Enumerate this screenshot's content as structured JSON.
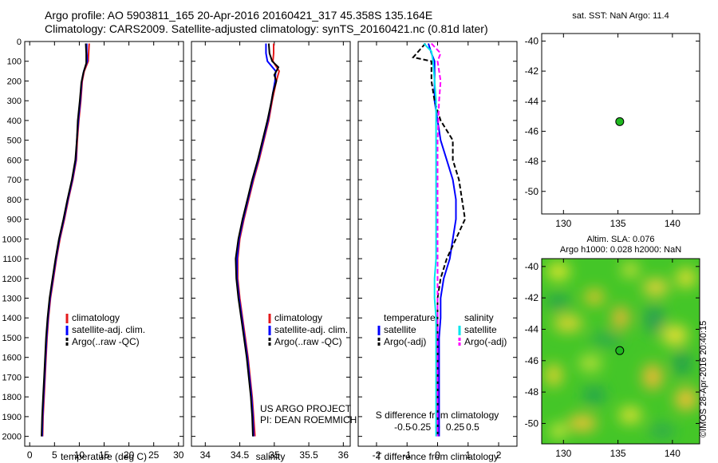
{
  "header": {
    "title_line1": "Argo profile: AO 5903811_165 20-Apr-2016 20160421_317 45.358S 135.164E",
    "title_line2": "Climatology: CARS2009. Satellite-adjusted climatology: synTS_20160421.nc (0.81d later)"
  },
  "credit": {
    "line1": "US ARGO PROJECT",
    "line2": "PI: DEAN ROEMMICH"
  },
  "stamp": "©IMOS 28-Apr-2016 20:40:15",
  "colors": {
    "climatology": "#e41a1c",
    "satellite": "#0000ff",
    "argo": "#000000",
    "salinity_sat": "#00e5ee",
    "salinity_argo": "#ff00ff",
    "marker": "#1fb81f"
  },
  "chart_data": [
    {
      "id": "temperature",
      "type": "line",
      "xlabel": "temperature (deg C)",
      "xlim": [
        -1,
        31
      ],
      "xticks": [
        0,
        5,
        10,
        15,
        20,
        25,
        30
      ],
      "ylim": [
        0,
        2050
      ],
      "yticks": [
        0,
        100,
        200,
        300,
        400,
        500,
        600,
        700,
        800,
        900,
        1000,
        1100,
        1200,
        1300,
        1400,
        1500,
        1600,
        1700,
        1800,
        1900,
        2000
      ],
      "legend": [
        "climatology",
        "satellite-adj. clim.",
        "Argo(..raw -QC)"
      ],
      "series": [
        {
          "name": "climatology",
          "color": "#e41a1c",
          "style": "solid",
          "points": [
            [
              12.0,
              10
            ],
            [
              11.9,
              50
            ],
            [
              11.8,
              100
            ],
            [
              11.0,
              150
            ],
            [
              10.6,
              200
            ],
            [
              10.3,
              300
            ],
            [
              9.9,
              400
            ],
            [
              9.6,
              500
            ],
            [
              9.4,
              600
            ],
            [
              8.7,
              700
            ],
            [
              7.8,
              800
            ],
            [
              7.0,
              900
            ],
            [
              6.1,
              1000
            ],
            [
              5.4,
              1100
            ],
            [
              4.8,
              1200
            ],
            [
              4.2,
              1300
            ],
            [
              3.8,
              1400
            ],
            [
              3.5,
              1500
            ],
            [
              3.3,
              1600
            ],
            [
              3.1,
              1700
            ],
            [
              2.9,
              1800
            ],
            [
              2.7,
              1900
            ],
            [
              2.6,
              2000
            ]
          ]
        },
        {
          "name": "satellite-adj. clim.",
          "color": "#0000ff",
          "style": "solid",
          "points": [
            [
              11.5,
              10
            ],
            [
              11.5,
              50
            ],
            [
              11.6,
              100
            ],
            [
              10.9,
              150
            ],
            [
              10.5,
              200
            ],
            [
              10.2,
              300
            ],
            [
              9.8,
              400
            ],
            [
              9.5,
              500
            ],
            [
              9.3,
              600
            ],
            [
              8.6,
              700
            ],
            [
              7.7,
              800
            ],
            [
              6.9,
              900
            ],
            [
              6.0,
              1000
            ],
            [
              5.3,
              1100
            ],
            [
              4.7,
              1200
            ],
            [
              4.1,
              1300
            ],
            [
              3.7,
              1400
            ],
            [
              3.4,
              1500
            ],
            [
              3.2,
              1600
            ],
            [
              3.0,
              1700
            ],
            [
              2.8,
              1800
            ],
            [
              2.6,
              1900
            ],
            [
              2.5,
              2000
            ]
          ]
        },
        {
          "name": "Argo(..raw -QC)",
          "color": "#000000",
          "style": "solid",
          "points": [
            [
              11.3,
              10
            ],
            [
              11.4,
              60
            ],
            [
              11.4,
              110
            ],
            [
              10.8,
              160
            ],
            [
              10.4,
              210
            ],
            [
              10.1,
              300
            ],
            [
              9.7,
              400
            ],
            [
              9.5,
              500
            ],
            [
              9.2,
              600
            ],
            [
              8.5,
              700
            ],
            [
              7.6,
              800
            ],
            [
              6.8,
              900
            ],
            [
              5.9,
              1000
            ],
            [
              5.2,
              1100
            ],
            [
              4.6,
              1200
            ],
            [
              4.0,
              1300
            ],
            [
              3.6,
              1400
            ],
            [
              3.3,
              1500
            ],
            [
              3.1,
              1600
            ],
            [
              2.9,
              1700
            ],
            [
              2.7,
              1800
            ],
            [
              2.5,
              1900
            ],
            [
              2.4,
              2000
            ]
          ]
        }
      ]
    },
    {
      "id": "salinity",
      "type": "line",
      "xlabel": "salinity",
      "xlim": [
        33.8,
        36.1
      ],
      "xticks": [
        34,
        34.5,
        35,
        35.5,
        36
      ],
      "ylim": [
        0,
        2050
      ],
      "legend": [
        "climatology",
        "satellite-adj. clim.",
        "Argo(..raw -QC)"
      ],
      "series": [
        {
          "name": "climatology",
          "color": "#e41a1c",
          "style": "solid",
          "points": [
            [
              34.99,
              10
            ],
            [
              34.99,
              60
            ],
            [
              34.98,
              100
            ],
            [
              35.07,
              150
            ],
            [
              35.03,
              200
            ],
            [
              34.97,
              300
            ],
            [
              34.92,
              400
            ],
            [
              34.85,
              500
            ],
            [
              34.78,
              600
            ],
            [
              34.7,
              700
            ],
            [
              34.63,
              800
            ],
            [
              34.56,
              900
            ],
            [
              34.5,
              1000
            ],
            [
              34.47,
              1100
            ],
            [
              34.47,
              1200
            ],
            [
              34.5,
              1300
            ],
            [
              34.54,
              1400
            ],
            [
              34.58,
              1500
            ],
            [
              34.62,
              1600
            ],
            [
              34.65,
              1700
            ],
            [
              34.68,
              1800
            ],
            [
              34.7,
              1900
            ],
            [
              34.72,
              2000
            ]
          ]
        },
        {
          "name": "satellite-adj. clim.",
          "color": "#0000ff",
          "style": "solid",
          "points": [
            [
              34.88,
              10
            ],
            [
              34.88,
              60
            ],
            [
              34.9,
              100
            ],
            [
              35.02,
              150
            ],
            [
              35.01,
              200
            ],
            [
              34.96,
              300
            ],
            [
              34.91,
              400
            ],
            [
              34.84,
              500
            ],
            [
              34.77,
              600
            ],
            [
              34.69,
              700
            ],
            [
              34.62,
              800
            ],
            [
              34.55,
              900
            ],
            [
              34.49,
              1000
            ],
            [
              34.46,
              1100
            ],
            [
              34.46,
              1200
            ],
            [
              34.49,
              1300
            ],
            [
              34.53,
              1400
            ],
            [
              34.57,
              1500
            ],
            [
              34.61,
              1600
            ],
            [
              34.64,
              1700
            ],
            [
              34.67,
              1800
            ],
            [
              34.69,
              1900
            ],
            [
              34.7,
              2000
            ]
          ]
        },
        {
          "name": "Argo(..raw -QC)",
          "color": "#000000",
          "style": "solid",
          "points": [
            [
              34.92,
              10
            ],
            [
              34.93,
              60
            ],
            [
              34.97,
              100
            ],
            [
              35.06,
              130
            ],
            [
              35.0,
              170
            ],
            [
              35.03,
              200
            ],
            [
              34.98,
              260
            ],
            [
              34.96,
              300
            ],
            [
              34.9,
              400
            ],
            [
              34.83,
              500
            ],
            [
              34.76,
              600
            ],
            [
              34.68,
              700
            ],
            [
              34.61,
              800
            ],
            [
              34.54,
              900
            ],
            [
              34.48,
              1000
            ],
            [
              34.44,
              1100
            ],
            [
              34.45,
              1200
            ],
            [
              34.48,
              1300
            ],
            [
              34.52,
              1400
            ],
            [
              34.56,
              1500
            ],
            [
              34.6,
              1600
            ],
            [
              34.63,
              1700
            ],
            [
              34.66,
              1800
            ],
            [
              34.68,
              1900
            ],
            [
              34.69,
              2000
            ]
          ]
        }
      ]
    },
    {
      "id": "difference",
      "type": "line",
      "xlabel": "T difference from climatology",
      "xlabel_top": "S difference from climatology",
      "xlim": [
        -2.6,
        2.6
      ],
      "xticks": [
        -2,
        -1,
        0,
        1,
        2
      ],
      "xticks_top": [
        -0.5,
        -0.25,
        0,
        0.25,
        0.5
      ],
      "ylim": [
        0,
        2050
      ],
      "legend_temperature": {
        "title": "temperature",
        "items": [
          "satellite",
          "Argo(-adj)"
        ]
      },
      "legend_salinity": {
        "title": "salinity",
        "items": [
          "satellite",
          "Argo(-adj)"
        ]
      },
      "series": [
        {
          "name": "temperature satellite",
          "color": "#0000ff",
          "style": "solid",
          "points": [
            [
              -0.3,
              10
            ],
            [
              -0.2,
              60
            ],
            [
              -0.1,
              100
            ],
            [
              -0.1,
              200
            ],
            [
              -0.1,
              300
            ],
            [
              0.0,
              400
            ],
            [
              0.1,
              500
            ],
            [
              0.3,
              600
            ],
            [
              0.5,
              700
            ],
            [
              0.6,
              800
            ],
            [
              0.6,
              900
            ],
            [
              0.5,
              1000
            ],
            [
              0.4,
              1100
            ],
            [
              0.2,
              1200
            ],
            [
              0.1,
              1300
            ],
            [
              0.1,
              1400
            ],
            [
              0.05,
              1500
            ],
            [
              0.05,
              1600
            ],
            [
              0.05,
              1700
            ],
            [
              0.05,
              1800
            ],
            [
              0.05,
              1900
            ],
            [
              0.05,
              2000
            ]
          ]
        },
        {
          "name": "temperature Argo(-adj)",
          "color": "#000000",
          "style": "dashed",
          "points": [
            [
              -0.4,
              10
            ],
            [
              -0.8,
              80
            ],
            [
              -0.2,
              100
            ],
            [
              -0.2,
              200
            ],
            [
              -0.1,
              300
            ],
            [
              0.1,
              400
            ],
            [
              0.5,
              500
            ],
            [
              0.5,
              600
            ],
            [
              0.7,
              700
            ],
            [
              0.8,
              800
            ],
            [
              0.9,
              900
            ],
            [
              0.6,
              1000
            ],
            [
              0.3,
              1100
            ],
            [
              0.1,
              1200
            ],
            [
              0.0,
              1300
            ],
            [
              0.0,
              1400
            ],
            [
              0.0,
              1500
            ],
            [
              0.0,
              1600
            ],
            [
              0.0,
              1700
            ],
            [
              0.0,
              1800
            ],
            [
              0.0,
              1900
            ],
            [
              0.0,
              2000
            ]
          ]
        },
        {
          "name": "salinity satellite",
          "color": "#00e5ee",
          "style": "solid",
          "points": [
            [
              -0.45,
              10
            ],
            [
              -0.2,
              50
            ],
            [
              -0.15,
              100
            ],
            [
              -0.1,
              200
            ],
            [
              -0.05,
              300
            ],
            [
              -0.05,
              400
            ],
            [
              -0.05,
              500
            ],
            [
              -0.05,
              600
            ],
            [
              -0.05,
              700
            ],
            [
              -0.05,
              800
            ],
            [
              -0.05,
              900
            ],
            [
              -0.05,
              1000
            ],
            [
              -0.05,
              1100
            ],
            [
              -0.1,
              1200
            ],
            [
              -0.1,
              1300
            ],
            [
              -0.05,
              1400
            ],
            [
              -0.05,
              1500
            ],
            [
              -0.05,
              1600
            ],
            [
              -0.05,
              1700
            ],
            [
              -0.05,
              1800
            ],
            [
              -0.05,
              1900
            ],
            [
              -0.05,
              2000
            ]
          ]
        },
        {
          "name": "salinity Argo(-adj)",
          "color": "#ff00ff",
          "style": "dashed",
          "points": [
            [
              -0.2,
              10
            ],
            [
              0.1,
              60
            ],
            [
              0.0,
              100
            ],
            [
              0.1,
              200
            ],
            [
              0.05,
              300
            ],
            [
              0.0,
              500
            ],
            [
              0.0,
              700
            ],
            [
              0.0,
              900
            ],
            [
              0.0,
              1100
            ],
            [
              0.0,
              1300
            ],
            [
              0.0,
              1500
            ],
            [
              0.0,
              1700
            ],
            [
              0.0,
              1900
            ],
            [
              0.0,
              2000
            ]
          ]
        }
      ]
    },
    {
      "id": "sst_map",
      "type": "scatter",
      "title": "sat. SST: NaN Argo: 11.4",
      "xlim": [
        128,
        142.5
      ],
      "xticks": [
        130,
        135,
        140
      ],
      "ylim": [
        -51.5,
        -39.5
      ],
      "yticks": [
        -40,
        -42,
        -44,
        -46,
        -48,
        -50
      ],
      "points": [
        [
          135.164,
          -45.358
        ]
      ]
    },
    {
      "id": "sla_map",
      "type": "heatmap",
      "title_line1": "Altim. SLA: 0.076",
      "title_line2": "Argo h1000: 0.028 h2000: NaN",
      "xlim": [
        128,
        142.5
      ],
      "xticks": [
        130,
        135,
        140
      ],
      "ylim": [
        -51.3,
        -39.5
      ],
      "yticks": [
        -40,
        -42,
        -44,
        -46,
        -48,
        -50
      ],
      "points": [
        [
          135.164,
          -45.358
        ]
      ]
    }
  ]
}
